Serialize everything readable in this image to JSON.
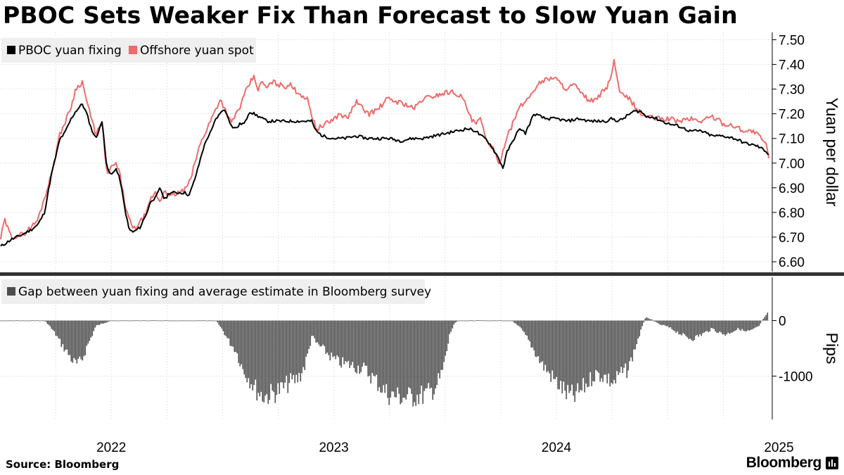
{
  "title": "PBOC Sets Weaker Fix Than Forecast to Slow Yuan Gain",
  "source": "Source: Bloomberg",
  "brand": "Bloomberg",
  "colors": {
    "fixing": "#000000",
    "spot": "#f06a6a",
    "gap": "#4d4d4d",
    "grid": "#d0d0d0",
    "divider": "#333333",
    "legend_bg": "#efefef"
  },
  "chart_data": [
    {
      "type": "line",
      "title": "PBOC Sets Weaker Fix Than Forecast to Slow Yuan Gain",
      "ylabel": "Yuan per dollar",
      "ylim": [
        6.56,
        7.53
      ],
      "yticks": [
        "7.50",
        "7.40",
        "7.30",
        "7.20",
        "7.10",
        "7.00",
        "6.90",
        "6.80",
        "6.70",
        "6.60"
      ],
      "ytick_values": [
        7.5,
        7.4,
        7.3,
        7.2,
        7.1,
        7.0,
        6.9,
        6.8,
        6.7,
        6.6
      ],
      "legend_position": "top-left",
      "x_unit": "years since 2022-01-01",
      "xlim": [
        0.0,
        3.47
      ],
      "series": [
        {
          "name": "PBOC yuan fixing",
          "color": "#000000",
          "x": [
            0.0,
            0.05,
            0.1,
            0.14,
            0.17,
            0.2,
            0.23,
            0.27,
            0.29,
            0.32,
            0.34,
            0.37,
            0.39,
            0.41,
            0.43,
            0.46,
            0.48,
            0.5,
            0.52,
            0.54,
            0.56,
            0.58,
            0.6,
            0.63,
            0.66,
            0.68,
            0.7,
            0.72,
            0.74,
            0.76,
            0.8,
            0.83,
            0.85,
            0.87,
            0.89,
            0.91,
            0.93,
            0.95,
            0.97,
            0.99,
            1.0,
            1.02,
            1.04,
            1.06,
            1.08,
            1.1,
            1.12,
            1.14,
            1.16,
            1.18,
            1.2,
            1.25,
            1.3,
            1.35,
            1.4,
            1.42,
            1.45,
            1.5,
            1.55,
            1.6,
            1.65,
            1.7,
            1.75,
            1.8,
            1.85,
            1.9,
            1.95,
            2.0,
            2.05,
            2.1,
            2.14,
            2.16,
            2.18,
            2.2,
            2.22,
            2.24,
            2.26,
            2.28,
            2.3,
            2.32,
            2.34,
            2.36,
            2.4,
            2.45,
            2.5,
            2.55,
            2.6,
            2.65,
            2.7,
            2.72,
            2.75,
            2.78,
            2.8,
            2.83,
            2.85,
            2.88,
            2.9,
            2.92,
            2.95,
            3.0,
            3.05,
            3.1,
            3.15,
            3.2,
            3.25,
            3.3,
            3.35,
            3.4,
            3.44,
            3.46
          ],
          "values": [
            6.66,
            6.69,
            6.71,
            6.73,
            6.75,
            6.8,
            6.95,
            7.1,
            7.12,
            7.18,
            7.21,
            7.24,
            7.2,
            7.14,
            7.1,
            7.17,
            6.98,
            6.95,
            6.98,
            6.93,
            6.82,
            6.73,
            6.72,
            6.74,
            6.8,
            6.85,
            6.86,
            6.9,
            6.85,
            6.88,
            6.88,
            6.88,
            6.87,
            6.92,
            6.98,
            7.05,
            7.1,
            7.13,
            7.18,
            7.2,
            7.22,
            7.2,
            7.15,
            7.14,
            7.16,
            7.16,
            7.21,
            7.2,
            7.19,
            7.18,
            7.17,
            7.17,
            7.17,
            7.17,
            7.17,
            7.13,
            7.11,
            7.1,
            7.1,
            7.11,
            7.1,
            7.1,
            7.1,
            7.09,
            7.1,
            7.1,
            7.11,
            7.12,
            7.13,
            7.14,
            7.13,
            7.11,
            7.1,
            7.08,
            7.05,
            7.02,
            6.98,
            7.05,
            7.08,
            7.12,
            7.14,
            7.12,
            7.2,
            7.18,
            7.18,
            7.17,
            7.18,
            7.17,
            7.17,
            7.17,
            7.18,
            7.17,
            7.18,
            7.2,
            7.21,
            7.21,
            7.19,
            7.19,
            7.18,
            7.16,
            7.15,
            7.13,
            7.13,
            7.11,
            7.11,
            7.1,
            7.08,
            7.07,
            7.05,
            7.03
          ]
        },
        {
          "name": "Offshore yuan spot",
          "color": "#f06a6a",
          "x": [
            0.0,
            0.02,
            0.05,
            0.1,
            0.14,
            0.17,
            0.2,
            0.23,
            0.27,
            0.29,
            0.32,
            0.34,
            0.37,
            0.39,
            0.41,
            0.43,
            0.46,
            0.48,
            0.5,
            0.52,
            0.54,
            0.56,
            0.58,
            0.6,
            0.63,
            0.66,
            0.68,
            0.7,
            0.72,
            0.74,
            0.76,
            0.8,
            0.83,
            0.85,
            0.87,
            0.89,
            0.91,
            0.93,
            0.95,
            0.97,
            0.99,
            1.0,
            1.02,
            1.04,
            1.06,
            1.08,
            1.1,
            1.12,
            1.14,
            1.16,
            1.18,
            1.2,
            1.22,
            1.25,
            1.28,
            1.3,
            1.32,
            1.35,
            1.38,
            1.4,
            1.42,
            1.45,
            1.5,
            1.53,
            1.56,
            1.6,
            1.63,
            1.66,
            1.7,
            1.74,
            1.78,
            1.82,
            1.86,
            1.9,
            1.94,
            1.98,
            2.02,
            2.06,
            2.08,
            2.1,
            2.12,
            2.14,
            2.16,
            2.18,
            2.2,
            2.22,
            2.24,
            2.26,
            2.28,
            2.3,
            2.32,
            2.34,
            2.36,
            2.38,
            2.4,
            2.43,
            2.46,
            2.49,
            2.52,
            2.55,
            2.58,
            2.61,
            2.64,
            2.67,
            2.7,
            2.72,
            2.74,
            2.76,
            2.78,
            2.8,
            2.83,
            2.86,
            2.88,
            2.9,
            2.95,
            3.0,
            3.05,
            3.1,
            3.15,
            3.2,
            3.25,
            3.3,
            3.35,
            3.38,
            3.41,
            3.44,
            3.46
          ],
          "values": [
            6.68,
            6.77,
            6.7,
            6.71,
            6.74,
            6.77,
            6.86,
            6.95,
            7.12,
            7.16,
            7.23,
            7.3,
            7.33,
            7.25,
            7.18,
            7.12,
            7.16,
            6.95,
            6.98,
            7.0,
            6.95,
            6.84,
            6.77,
            6.73,
            6.76,
            6.8,
            6.86,
            6.88,
            6.84,
            6.9,
            6.86,
            6.88,
            6.89,
            6.92,
            6.98,
            7.05,
            7.1,
            7.14,
            7.18,
            7.22,
            7.26,
            7.24,
            7.2,
            7.16,
            7.2,
            7.23,
            7.28,
            7.32,
            7.35,
            7.3,
            7.33,
            7.3,
            7.33,
            7.32,
            7.31,
            7.32,
            7.3,
            7.28,
            7.26,
            7.2,
            7.14,
            7.15,
            7.18,
            7.2,
            7.18,
            7.25,
            7.22,
            7.2,
            7.22,
            7.26,
            7.25,
            7.24,
            7.22,
            7.26,
            7.27,
            7.28,
            7.29,
            7.28,
            7.26,
            7.22,
            7.17,
            7.16,
            7.18,
            7.1,
            7.08,
            7.05,
            6.99,
            7.05,
            7.12,
            7.15,
            7.2,
            7.23,
            7.25,
            7.27,
            7.3,
            7.33,
            7.34,
            7.35,
            7.32,
            7.3,
            7.32,
            7.28,
            7.26,
            7.25,
            7.28,
            7.3,
            7.33,
            7.42,
            7.3,
            7.27,
            7.26,
            7.22,
            7.2,
            7.19,
            7.18,
            7.18,
            7.17,
            7.18,
            7.17,
            7.19,
            7.16,
            7.15,
            7.13,
            7.13,
            7.11,
            7.08,
            7.0
          ]
        }
      ]
    },
    {
      "type": "bar",
      "title": "Gap between yuan fixing and average estimate in Bloomberg survey",
      "ylabel": "Pips",
      "ylim": [
        -1780,
        780
      ],
      "yticks": [
        "0",
        "-1000"
      ],
      "ytick_values": [
        0,
        -1000
      ],
      "legend_position": "top-left",
      "x_unit": "years since 2022-01-01",
      "xlim": [
        0.0,
        3.47
      ],
      "series": [
        {
          "name": "Gap between yuan fixing and average estimate in Bloomberg survey",
          "color": "#4d4d4d",
          "x": [
            0.0,
            0.08,
            0.2,
            0.22,
            0.25,
            0.28,
            0.31,
            0.33,
            0.35,
            0.37,
            0.39,
            0.41,
            0.43,
            0.5,
            0.6,
            0.7,
            0.8,
            0.9,
            0.97,
            1.0,
            1.03,
            1.06,
            1.09,
            1.12,
            1.15,
            1.18,
            1.21,
            1.24,
            1.27,
            1.3,
            1.33,
            1.35,
            1.37,
            1.39,
            1.4,
            1.42,
            1.45,
            1.48,
            1.51,
            1.54,
            1.57,
            1.6,
            1.63,
            1.66,
            1.69,
            1.72,
            1.75,
            1.78,
            1.81,
            1.84,
            1.87,
            1.9,
            1.92,
            1.94,
            1.96,
            1.98,
            2.0,
            2.02,
            2.04,
            2.06,
            2.08,
            2.1,
            2.13,
            2.16,
            2.2,
            2.25,
            2.3,
            2.34,
            2.37,
            2.4,
            2.43,
            2.46,
            2.49,
            2.52,
            2.55,
            2.58,
            2.61,
            2.64,
            2.67,
            2.7,
            2.72,
            2.74,
            2.76,
            2.78,
            2.8,
            2.82,
            2.84,
            2.86,
            2.88,
            2.9,
            2.93,
            2.96,
            2.99,
            3.02,
            3.05,
            3.08,
            3.11,
            3.14,
            3.17,
            3.2,
            3.23,
            3.26,
            3.29,
            3.32,
            3.35,
            3.38,
            3.41,
            3.43,
            3.45
          ],
          "values": [
            0,
            0,
            0,
            -90,
            -260,
            -470,
            -640,
            -780,
            -820,
            -700,
            -480,
            -300,
            -100,
            0,
            0,
            0,
            0,
            0,
            0,
            -180,
            -400,
            -560,
            -900,
            -1080,
            -1280,
            -1400,
            -1380,
            -1320,
            -1260,
            -1150,
            -1100,
            -1000,
            -820,
            -500,
            -280,
            -420,
            -520,
            -650,
            -750,
            -800,
            -820,
            -860,
            -880,
            -1000,
            -1120,
            -1280,
            -1380,
            -1400,
            -1420,
            -1420,
            -1400,
            -1380,
            -1360,
            -1300,
            -1200,
            -1050,
            -720,
            -260,
            -60,
            0,
            0,
            0,
            0,
            0,
            0,
            0,
            0,
            -150,
            -340,
            -560,
            -780,
            -950,
            -1100,
            -1240,
            -1380,
            -1420,
            -1300,
            -1160,
            -1000,
            -1010,
            -1040,
            -1120,
            -1160,
            -1010,
            -960,
            -920,
            -680,
            -420,
            -180,
            60,
            20,
            -70,
            -100,
            -160,
            -230,
            -300,
            -340,
            -280,
            -220,
            -150,
            -220,
            -260,
            -200,
            -150,
            -210,
            -180,
            -100,
            40,
            180
          ]
        }
      ]
    }
  ],
  "x_axis": {
    "ticks": [
      "2022",
      "2023",
      "2024",
      "2025"
    ],
    "tick_values": [
      0.0,
      1.0,
      2.0,
      3.0
    ]
  }
}
